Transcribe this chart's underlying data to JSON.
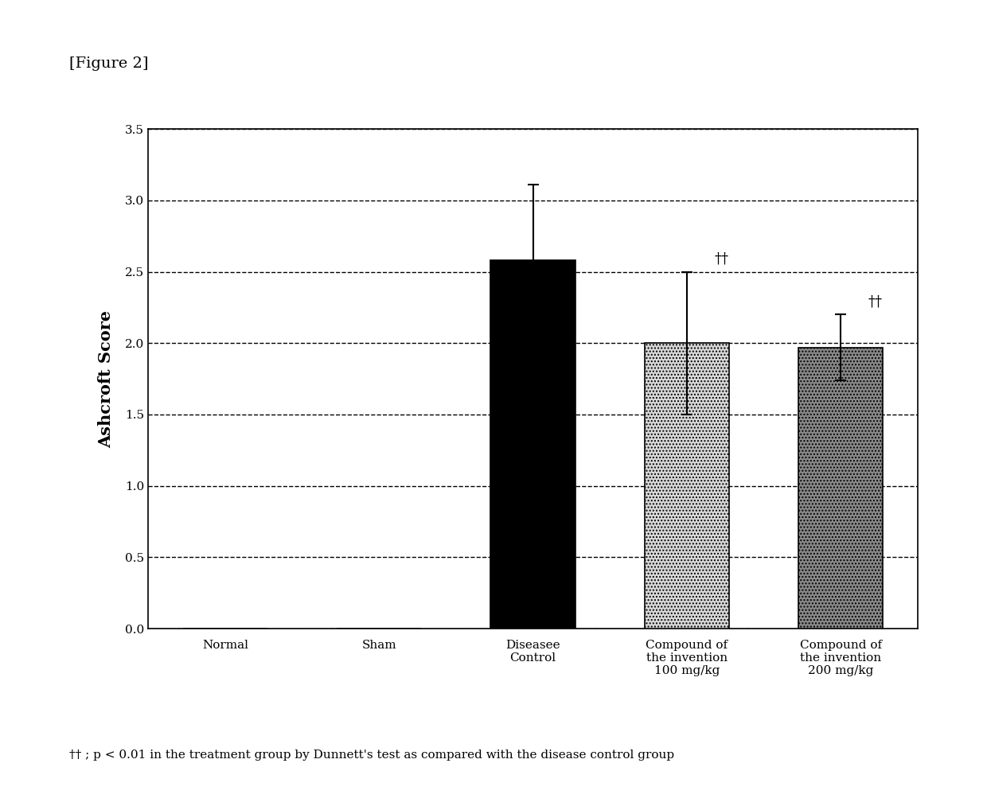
{
  "title": "[Figure 2]",
  "ylabel": "Ashcroft Score",
  "categories": [
    "Normal",
    "Sham",
    "Diseasee\nControl",
    "Compound of\nthe invention\n100 mg/kg",
    "Compound of\nthe invention\n200 mg/kg"
  ],
  "values": [
    0.0,
    0.0,
    2.58,
    2.0,
    1.97
  ],
  "errors": [
    0.0,
    0.0,
    0.53,
    0.5,
    0.23
  ],
  "bar_colors": [
    "#ffffff",
    "#ffffff",
    "#000000",
    "#d8d8d8",
    "#888888"
  ],
  "bar_hatches": [
    null,
    null,
    null,
    "....",
    "...."
  ],
  "ylim": [
    0.0,
    3.5
  ],
  "yticks": [
    0.0,
    0.5,
    1.0,
    1.5,
    2.0,
    2.5,
    3.0,
    3.5
  ],
  "significance": [
    false,
    false,
    false,
    true,
    true
  ],
  "sig_label": "††",
  "footnote": "†† ; p < 0.01 in the treatment group by Dunnett's test as compared with the disease control group",
  "background_color": "#ffffff",
  "fig_width": 12.4,
  "fig_height": 10.13
}
